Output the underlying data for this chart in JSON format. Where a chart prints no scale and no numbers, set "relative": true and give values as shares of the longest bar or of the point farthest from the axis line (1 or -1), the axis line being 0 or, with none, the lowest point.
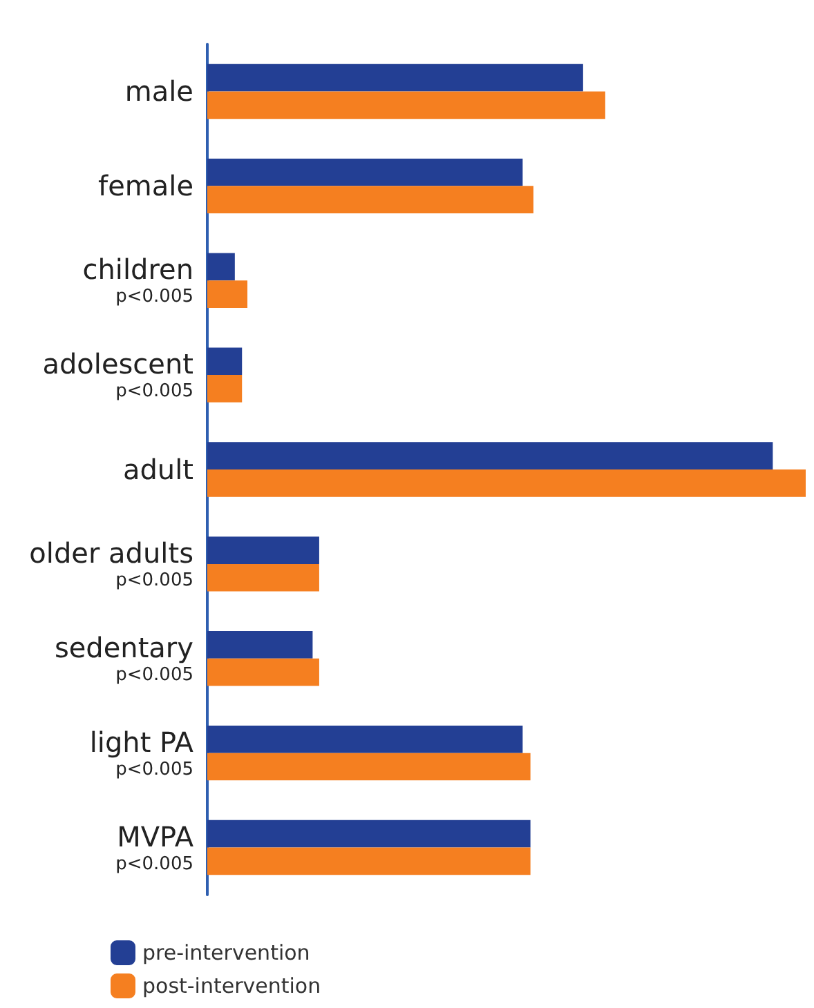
{
  "chart_data": {
    "type": "bar",
    "orientation": "horizontal",
    "relative": true,
    "legend": "bottom left",
    "categories": [
      "male",
      "female",
      "children\np<0.005",
      "adolescent\np<0.005",
      "adult",
      "older adults\np<0.005",
      "sedentary\np<0.005",
      "light PA\np<0.005",
      "MVPA\np<0.005"
    ],
    "series": [
      {
        "name": "pre-intervention",
        "color": "#233f94",
        "values": [
          0.628,
          0.527,
          0.046,
          0.058,
          0.945,
          0.187,
          0.176,
          0.527,
          0.54
        ]
      },
      {
        "name": "post-intervention",
        "color": "#f57f20",
        "values": [
          0.665,
          0.545,
          0.067,
          0.058,
          1,
          0.187,
          0.187,
          0.54,
          0.54
        ]
      }
    ]
  }
}
